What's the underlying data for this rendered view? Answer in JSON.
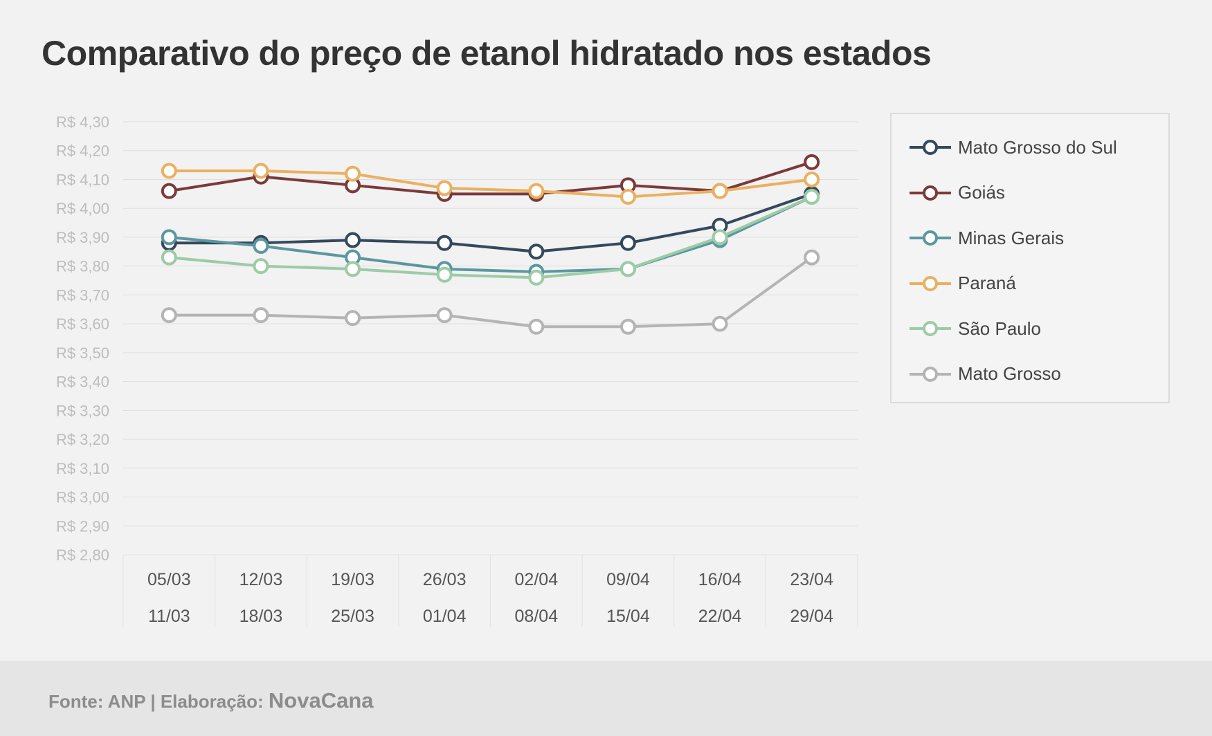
{
  "title": "Comparativo do preço de etanol hidratado nos estados",
  "footer": {
    "source": "Fonte: ANP | Elaboração:",
    "brand": "NovaCana"
  },
  "chart_data": {
    "type": "line",
    "title": "Comparativo do preço de etanol hidratado nos estados",
    "xlabel": "",
    "ylabel": "",
    "ylim": [
      2.8,
      4.3
    ],
    "ytick_step": 0.1,
    "y_tick_labels": [
      "R$ 4,30",
      "R$ 4,20",
      "R$ 4,10",
      "R$ 4,00",
      "R$ 3,90",
      "R$ 3,80",
      "R$ 3,70",
      "R$ 3,60",
      "R$ 3,50",
      "R$ 3,40",
      "R$ 3,30",
      "R$ 3,20",
      "R$ 3,10",
      "R$ 3,00",
      "R$ 2,90",
      "R$ 2,80"
    ],
    "grid": true,
    "legend_position": "right",
    "categories": [
      {
        "start": "05/03",
        "end": "11/03"
      },
      {
        "start": "12/03",
        "end": "18/03"
      },
      {
        "start": "19/03",
        "end": "25/03"
      },
      {
        "start": "26/03",
        "end": "01/04"
      },
      {
        "start": "02/04",
        "end": "08/04"
      },
      {
        "start": "09/04",
        "end": "15/04"
      },
      {
        "start": "16/04",
        "end": "22/04"
      },
      {
        "start": "23/04",
        "end": "29/04"
      }
    ],
    "series": [
      {
        "name": "Mato Grosso do Sul",
        "color": "#34495e",
        "values": [
          3.88,
          3.88,
          3.89,
          3.88,
          3.85,
          3.88,
          3.94,
          4.05
        ]
      },
      {
        "name": "Goiás",
        "color": "#7b3a3a",
        "values": [
          4.06,
          4.11,
          4.08,
          4.05,
          4.05,
          4.08,
          4.06,
          4.16
        ]
      },
      {
        "name": "Minas Gerais",
        "color": "#5b97a0",
        "values": [
          3.9,
          3.87,
          3.83,
          3.79,
          3.78,
          3.79,
          3.89,
          4.04
        ]
      },
      {
        "name": "Paraná",
        "color": "#eab062",
        "values": [
          4.13,
          4.13,
          4.12,
          4.07,
          4.06,
          4.04,
          4.06,
          4.1
        ]
      },
      {
        "name": "São Paulo",
        "color": "#9ccba6",
        "values": [
          3.83,
          3.8,
          3.79,
          3.77,
          3.76,
          3.79,
          3.9,
          4.04
        ]
      },
      {
        "name": "Mato Grosso",
        "color": "#b4b4b4",
        "values": [
          3.63,
          3.63,
          3.62,
          3.63,
          3.59,
          3.59,
          3.6,
          3.83
        ]
      }
    ]
  }
}
